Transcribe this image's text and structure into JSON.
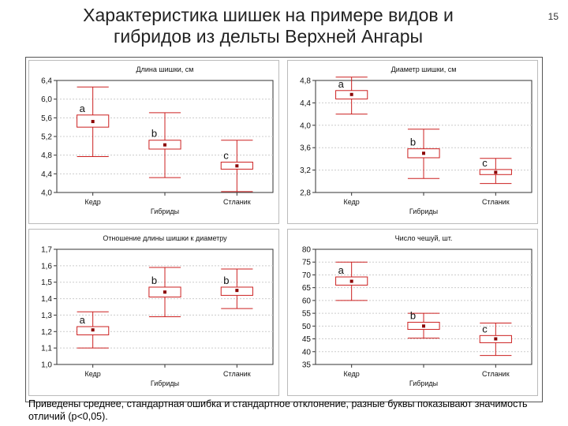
{
  "slide": {
    "title_line1": "Характеристика шишек на примере видов и",
    "title_line2": "гибридов из дельты Верхней Ангары",
    "page_number": "15",
    "caption": "Приведены среднее, стандартная ошибка и стандартное отклонение, разные буквы показывают значимость отличий (p<0,05)."
  },
  "colors": {
    "box": "#cc2020",
    "mean": "#8b0000",
    "frame": "#333333",
    "grid": "#cccccc"
  },
  "chart_data": [
    {
      "type": "boxplot",
      "title": "Длина шишки, см",
      "categories": [
        "Кедр",
        "Гибриды",
        "Стланик"
      ],
      "ylim": [
        4.0,
        6.4
      ],
      "yticks": [
        "4,0",
        "4,4",
        "4,8",
        "5,2",
        "5,6",
        "6,0",
        "6,4"
      ],
      "ytick_values": [
        4.0,
        4.4,
        4.8,
        5.2,
        5.6,
        6.0,
        6.4
      ],
      "series": [
        {
          "category": "Кедр",
          "mean": 5.52,
          "se_low": 5.4,
          "se_high": 5.66,
          "sd_low": 4.77,
          "sd_high": 6.26,
          "letter": "a"
        },
        {
          "category": "Гибриды",
          "mean": 5.02,
          "se_low": 4.93,
          "se_high": 5.12,
          "sd_low": 4.32,
          "sd_high": 5.71,
          "letter": "b"
        },
        {
          "category": "Стланик",
          "mean": 4.57,
          "se_low": 4.5,
          "se_high": 4.65,
          "sd_low": 4.02,
          "sd_high": 5.12,
          "letter": "c"
        }
      ]
    },
    {
      "type": "boxplot",
      "title": "Диаметр шишки, см",
      "categories": [
        "Кедр",
        "Гибриды",
        "Стланик"
      ],
      "ylim": [
        2.8,
        4.8
      ],
      "yticks": [
        "2,8",
        "3,2",
        "3,6",
        "4,0",
        "4,4",
        "4,8"
      ],
      "ytick_values": [
        2.8,
        3.2,
        3.6,
        4.0,
        4.4,
        4.8
      ],
      "series": [
        {
          "category": "Кедр",
          "mean": 4.55,
          "se_low": 4.47,
          "se_high": 4.62,
          "sd_low": 4.2,
          "sd_high": 4.86,
          "letter": "a"
        },
        {
          "category": "Гибриды",
          "mean": 3.5,
          "se_low": 3.42,
          "se_high": 3.58,
          "sd_low": 3.05,
          "sd_high": 3.93,
          "letter": "b"
        },
        {
          "category": "Стланик",
          "mean": 3.16,
          "se_low": 3.12,
          "se_high": 3.21,
          "sd_low": 2.96,
          "sd_high": 3.41,
          "letter": "c"
        }
      ]
    },
    {
      "type": "boxplot",
      "title": "Отношение длины шишки к диаметру",
      "categories": [
        "Кедр",
        "Гибриды",
        "Стланик"
      ],
      "ylim": [
        1.0,
        1.7
      ],
      "yticks": [
        "1,0",
        "1,1",
        "1,2",
        "1,3",
        "1,4",
        "1,5",
        "1,6",
        "1,7"
      ],
      "ytick_values": [
        1.0,
        1.1,
        1.2,
        1.3,
        1.4,
        1.5,
        1.6,
        1.7
      ],
      "series": [
        {
          "category": "Кедр",
          "mean": 1.21,
          "se_low": 1.18,
          "se_high": 1.23,
          "sd_low": 1.1,
          "sd_high": 1.32,
          "letter": "a"
        },
        {
          "category": "Гибриды",
          "mean": 1.44,
          "se_low": 1.41,
          "se_high": 1.47,
          "sd_low": 1.29,
          "sd_high": 1.59,
          "letter": "b"
        },
        {
          "category": "Стланик",
          "mean": 1.45,
          "se_low": 1.42,
          "se_high": 1.47,
          "sd_low": 1.34,
          "sd_high": 1.58,
          "letter": "b"
        }
      ]
    },
    {
      "type": "boxplot",
      "title": "Число чешуй, шт.",
      "categories": [
        "Кедр",
        "Гибриды",
        "Стланик"
      ],
      "ylim": [
        35,
        80
      ],
      "yticks": [
        "35",
        "40",
        "45",
        "50",
        "55",
        "60",
        "65",
        "70",
        "75",
        "80"
      ],
      "ytick_values": [
        35,
        40,
        45,
        50,
        55,
        60,
        65,
        70,
        75,
        80
      ],
      "series": [
        {
          "category": "Кедр",
          "mean": 67.5,
          "se_low": 66,
          "se_high": 69.2,
          "sd_low": 60,
          "sd_high": 75,
          "letter": "a"
        },
        {
          "category": "Гибриды",
          "mean": 50,
          "se_low": 48.7,
          "se_high": 51.5,
          "sd_low": 45.3,
          "sd_high": 55,
          "letter": "b"
        },
        {
          "category": "Стланик",
          "mean": 45,
          "se_low": 43.5,
          "se_high": 46.3,
          "sd_low": 38.5,
          "sd_high": 51.2,
          "letter": "c"
        }
      ]
    }
  ]
}
